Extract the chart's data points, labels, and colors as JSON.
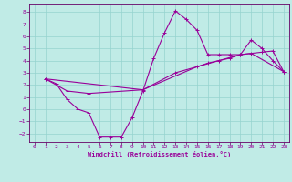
{
  "xlabel": "Windchill (Refroidissement éolien,°C)",
  "bg_color": "#c0ebe6",
  "grid_color": "#96d4ce",
  "line_color": "#990099",
  "spine_color": "#660066",
  "xlim": [
    -0.5,
    23.5
  ],
  "ylim": [
    -2.7,
    8.7
  ],
  "xticks": [
    0,
    1,
    2,
    3,
    4,
    5,
    6,
    7,
    8,
    9,
    10,
    11,
    12,
    13,
    14,
    15,
    16,
    17,
    18,
    19,
    20,
    21,
    22,
    23
  ],
  "yticks": [
    -2,
    -1,
    0,
    1,
    2,
    3,
    4,
    5,
    6,
    7,
    8
  ],
  "series1": [
    [
      1,
      2.5
    ],
    [
      2,
      2.1
    ],
    [
      3,
      0.8
    ],
    [
      4,
      0.0
    ],
    [
      5,
      -0.3
    ],
    [
      6,
      -2.3
    ],
    [
      7,
      -2.3
    ],
    [
      8,
      -2.3
    ],
    [
      9,
      -0.7
    ],
    [
      10,
      1.5
    ],
    [
      11,
      4.2
    ],
    [
      12,
      6.3
    ],
    [
      13,
      8.1
    ],
    [
      14,
      7.4
    ],
    [
      15,
      6.5
    ],
    [
      16,
      4.5
    ],
    [
      17,
      4.5
    ],
    [
      18,
      4.5
    ],
    [
      19,
      4.5
    ],
    [
      20,
      5.7
    ],
    [
      21,
      5.0
    ],
    [
      22,
      4.0
    ],
    [
      23,
      3.1
    ]
  ],
  "series2": [
    [
      1,
      2.5
    ],
    [
      3,
      1.5
    ],
    [
      5,
      1.3
    ],
    [
      10,
      1.6
    ],
    [
      13,
      3.0
    ],
    [
      15,
      3.5
    ],
    [
      16,
      3.8
    ],
    [
      17,
      4.0
    ],
    [
      18,
      4.2
    ],
    [
      19,
      4.5
    ],
    [
      20,
      4.6
    ],
    [
      21,
      4.7
    ],
    [
      22,
      4.8
    ],
    [
      23,
      3.1
    ]
  ],
  "series3": [
    [
      1,
      2.5
    ],
    [
      10,
      1.6
    ],
    [
      15,
      3.5
    ],
    [
      19,
      4.5
    ],
    [
      20,
      4.6
    ],
    [
      23,
      3.1
    ]
  ]
}
